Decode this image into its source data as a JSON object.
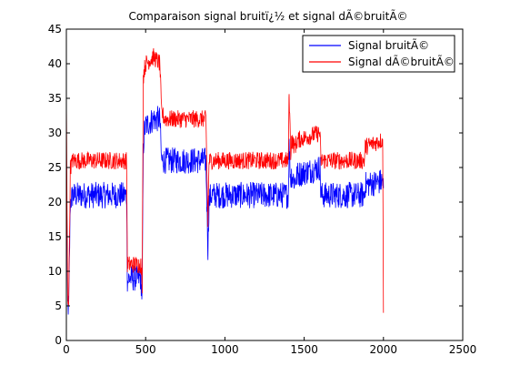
{
  "chart_data": {
    "type": "line",
    "title": "Comparaison signal bruitï¿½ et signal dÃ©bruitÃ©",
    "xlabel": "",
    "ylabel": "",
    "xlim": [
      0,
      2500
    ],
    "ylim": [
      0,
      45
    ],
    "x_ticks": [
      0,
      500,
      1000,
      1500,
      2000,
      2500
    ],
    "y_ticks": [
      0,
      5,
      10,
      15,
      20,
      25,
      30,
      35,
      40,
      45
    ],
    "x_tick_labels": [
      "0",
      "500",
      "1000",
      "1500",
      "2000",
      "2500"
    ],
    "y_tick_labels": [
      "0",
      "5",
      "10",
      "15",
      "20",
      "25",
      "30",
      "35",
      "40",
      "45"
    ],
    "grid": false,
    "legend_position": "top-right",
    "series": [
      {
        "name": "Signal bruitÃ©",
        "color": "#0000ff",
        "noise_amplitude": 1.2,
        "x": [
          0,
          8,
          15,
          25,
          40,
          380,
          385,
          395,
          470,
          478,
          485,
          490,
          500,
          550,
          590,
          600,
          620,
          880,
          893,
          900,
          910,
          1400,
          1405,
          1415,
          1420,
          1440,
          1460,
          1600,
          1605,
          1620,
          1880,
          1885,
          1995,
          2000
        ],
        "y": [
          28,
          5,
          5,
          20,
          21,
          21,
          8.5,
          9,
          9,
          6,
          27,
          30,
          31,
          32,
          32,
          26,
          26,
          26,
          13,
          20,
          21,
          21,
          28,
          23,
          24,
          23,
          24,
          25,
          21,
          21,
          21,
          22.5,
          23,
          22
        ]
      },
      {
        "name": "Signal dÃ©bruitÃ©",
        "color": "#ff0000",
        "noise_amplitude": 0.8,
        "x": [
          0,
          8,
          15,
          25,
          40,
          380,
          385,
          395,
          470,
          478,
          485,
          490,
          500,
          550,
          590,
          600,
          620,
          880,
          893,
          900,
          910,
          1400,
          1405,
          1415,
          1420,
          1440,
          1460,
          1600,
          1605,
          1620,
          1880,
          1885,
          1995,
          2000
        ],
        "y": [
          35,
          6,
          6,
          25,
          26,
          26,
          11,
          11,
          11,
          8,
          38,
          39,
          40,
          41,
          40,
          33,
          32,
          32,
          17,
          26,
          26,
          26,
          36,
          27,
          29,
          28,
          29,
          30,
          26,
          26,
          26,
          28,
          29,
          4
        ]
      }
    ]
  }
}
